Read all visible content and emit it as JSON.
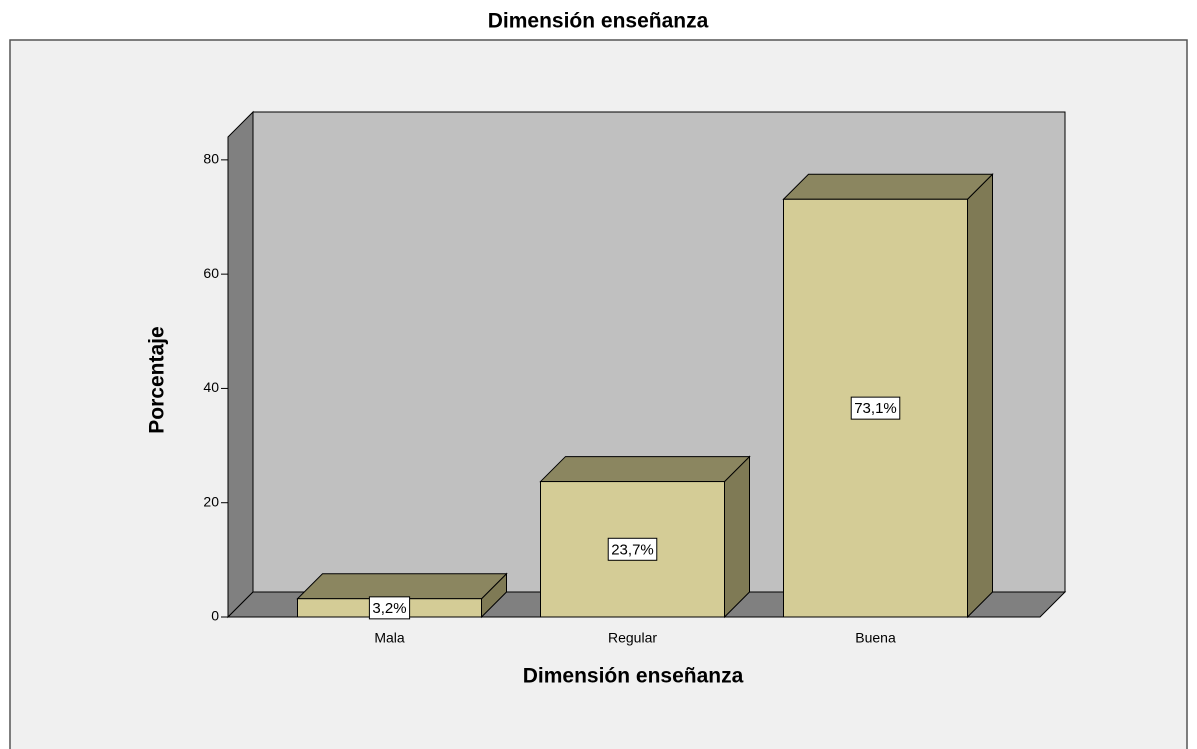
{
  "chart_data": {
    "type": "bar3d",
    "title": "Dimensión enseñanza",
    "x_label": "Dimensión enseñanza",
    "y_label": "Porcentaje",
    "categories": [
      "Mala",
      "Regular",
      "Buena"
    ],
    "values": [
      3.2,
      23.7,
      73.1
    ],
    "value_labels": [
      "3,2%",
      "23,7%",
      "73,1%"
    ],
    "color": "#d4cc96",
    "ylim": [
      0,
      84
    ],
    "yticks": [
      0,
      20,
      40,
      60,
      80
    ]
  }
}
